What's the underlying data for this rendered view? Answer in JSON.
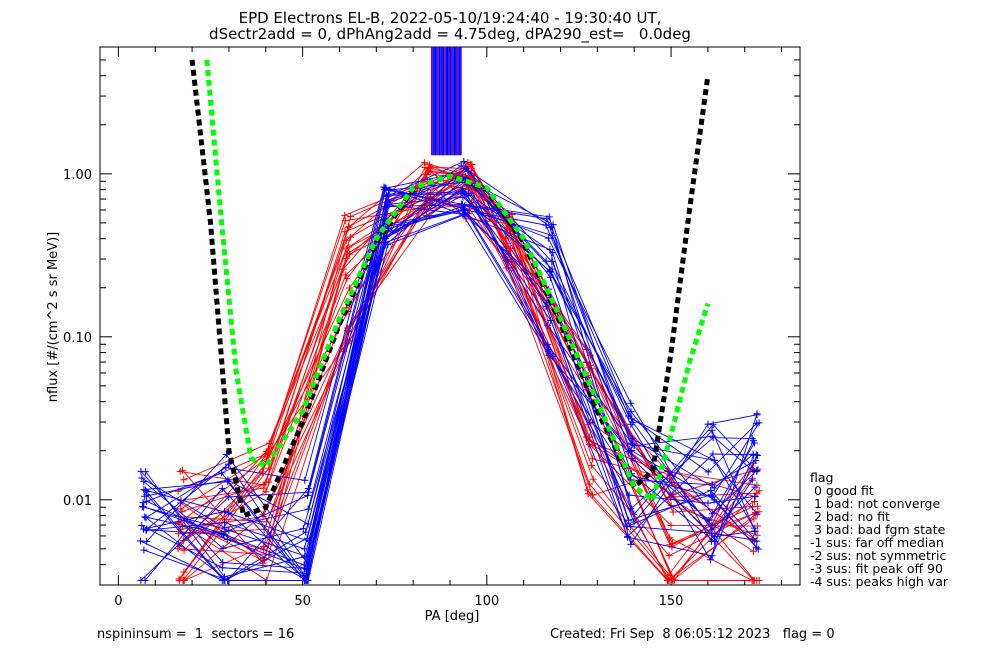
{
  "header": {
    "title_line1": "EPD Electrons EL-B, 2022-05-10/19:24:40 - 19:30:40 UT,",
    "title_line2": "dSectr2add = 0, dPhAng2add = 4.75deg, dPA290_est=   0.0deg"
  },
  "legend": {
    "title": "flag",
    "items": [
      " 0 good fit",
      " 1 bad: not converge",
      " 2 bad: no fit",
      " 3 bad: bad fgm state",
      "-1 sus: far off median",
      "-2 sus: not symmetric",
      "-3 sus: fit peak off 90",
      "-4 sus: peaks high var"
    ]
  },
  "footer": {
    "left": "nspininsum =  1  sectors = 16",
    "right": "Created: Fri Sep  8 06:05:12 2023   flag = 0"
  },
  "colors": {
    "series_red": "#ff0000",
    "series_blue": "#0000ff",
    "fit_black": "#000000",
    "fit_green": "#00ff00",
    "vertical_purple": "#8b008b"
  },
  "chart_data": {
    "type": "line",
    "xlabel": "PA [deg]",
    "ylabel": "nflux [#/(cm^2 s sr MeV)]",
    "xlim": [
      -5,
      185
    ],
    "ylim": [
      0.003,
      6
    ],
    "yscale": "log",
    "xticks": [
      0,
      50,
      100,
      150
    ],
    "yticks": [
      0.01,
      0.1,
      1.0
    ],
    "ytick_labels": [
      "0.01",
      "0.10",
      "1.00"
    ],
    "series": [
      {
        "color": "red",
        "x": [
          17,
          40,
          62,
          84,
          95,
          106,
          128,
          150,
          173
        ],
        "y": [
          0.006,
          0.008,
          0.2,
          0.8,
          0.78,
          0.4,
          0.03,
          0.007,
          0.006
        ]
      },
      {
        "color": "blue",
        "x": [
          7,
          29,
          51,
          73,
          94,
          117,
          139,
          161,
          173
        ],
        "y": [
          0.006,
          0.007,
          0.005,
          0.55,
          0.85,
          0.2,
          0.014,
          0.012,
          0.013
        ]
      },
      {
        "color": "black",
        "style": "dashed",
        "x": [
          20,
          25,
          30,
          34,
          40,
          50,
          60,
          70,
          80,
          90,
          100,
          110,
          120,
          130,
          140,
          145,
          150,
          155,
          160
        ],
        "y": [
          5.0,
          0.5,
          0.02,
          0.008,
          0.009,
          0.03,
          0.12,
          0.38,
          0.8,
          0.98,
          0.8,
          0.38,
          0.12,
          0.035,
          0.012,
          0.015,
          0.08,
          0.6,
          4.0
        ]
      },
      {
        "color": "green",
        "style": "dashed",
        "x": [
          24,
          28,
          32,
          36,
          40,
          50,
          60,
          70,
          80,
          90,
          100,
          110,
          120,
          130,
          140,
          145,
          150,
          155,
          160
        ],
        "y": [
          5.0,
          0.5,
          0.06,
          0.018,
          0.016,
          0.035,
          0.13,
          0.4,
          0.82,
          0.97,
          0.82,
          0.4,
          0.13,
          0.04,
          0.012,
          0.01,
          0.025,
          0.07,
          0.16
        ]
      }
    ],
    "vertical_lines": {
      "x_range": [
        85,
        93
      ],
      "y_range": [
        1.3,
        6
      ]
    }
  }
}
